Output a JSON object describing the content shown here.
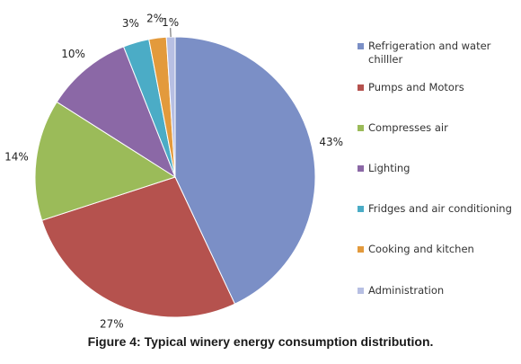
{
  "caption": "Figure 4: Typical winery energy consumption distribution.",
  "chart_data": {
    "type": "pie",
    "categories": [
      "Refrigeration and water chilller",
      "Pumps and Motors",
      "Compresses air",
      "Lighting",
      "Fridges and air conditioning",
      "Cooking and kitchen",
      "Administration"
    ],
    "values": [
      43,
      27,
      14,
      10,
      3,
      2,
      1
    ],
    "value_labels": [
      "43%",
      "27%",
      "14%",
      "10%",
      "3%",
      "2%",
      "1%"
    ],
    "colors": [
      "#7b8fc6",
      "#b5524e",
      "#9bbb59",
      "#8b68a6",
      "#4bacc6",
      "#e39a3c",
      "#b7bfe3"
    ],
    "start_position": "top, clockwise",
    "legend_position": "right"
  }
}
